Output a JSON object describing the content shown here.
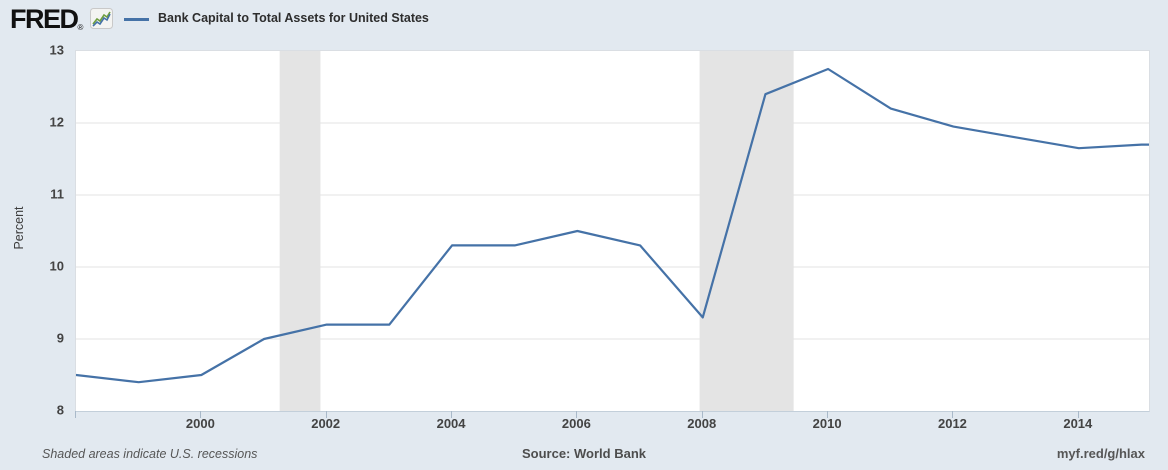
{
  "header": {
    "logo": "FRED",
    "registered_mark": "®",
    "title": "Bank Capital to Total Assets for United States"
  },
  "footer": {
    "note": "Shaded areas indicate U.S. recessions",
    "source": "Source: World Bank",
    "permalink": "myf.red/g/hlax"
  },
  "colors": {
    "page_background": "#e2e9f0",
    "plot_background": "#ffffff",
    "line": "#4572a7",
    "recession_shading": "#e4e4e4",
    "gridline": "#e3e3e3",
    "tick_text": "#434343",
    "icon_blue": "#4572a7",
    "icon_green": "#6f9e3f"
  },
  "chart_data": {
    "type": "line",
    "title": "Bank Capital to Total Assets for United States",
    "xlabel": "",
    "ylabel": "Percent",
    "x": [
      1998,
      1999,
      2000,
      2001,
      2002,
      2003,
      2004,
      2005,
      2006,
      2007,
      2008,
      2009,
      2010,
      2011,
      2012,
      2013,
      2014,
      2015
    ],
    "values": [
      8.5,
      8.4,
      8.5,
      9.0,
      9.2,
      9.2,
      10.3,
      10.3,
      10.5,
      10.3,
      9.3,
      12.4,
      12.75,
      12.2,
      11.95,
      11.8,
      11.65,
      11.7
    ],
    "ylim": [
      8,
      13
    ],
    "xlim": [
      1998,
      2015.12
    ],
    "y_ticks": [
      8,
      9,
      10,
      11,
      12,
      13
    ],
    "x_tick_labels": [
      2000,
      2002,
      2004,
      2006,
      2008,
      2010,
      2012,
      2014
    ],
    "x_tick_marks": [
      1998,
      2000,
      2002,
      2004,
      2006,
      2008,
      2010,
      2012,
      2014
    ],
    "grid": "horizontal-only",
    "legend_position": "top-header",
    "recessions": [
      {
        "start": 2001.25,
        "end": 2001.9
      },
      {
        "start": 2007.95,
        "end": 2009.45
      }
    ]
  }
}
